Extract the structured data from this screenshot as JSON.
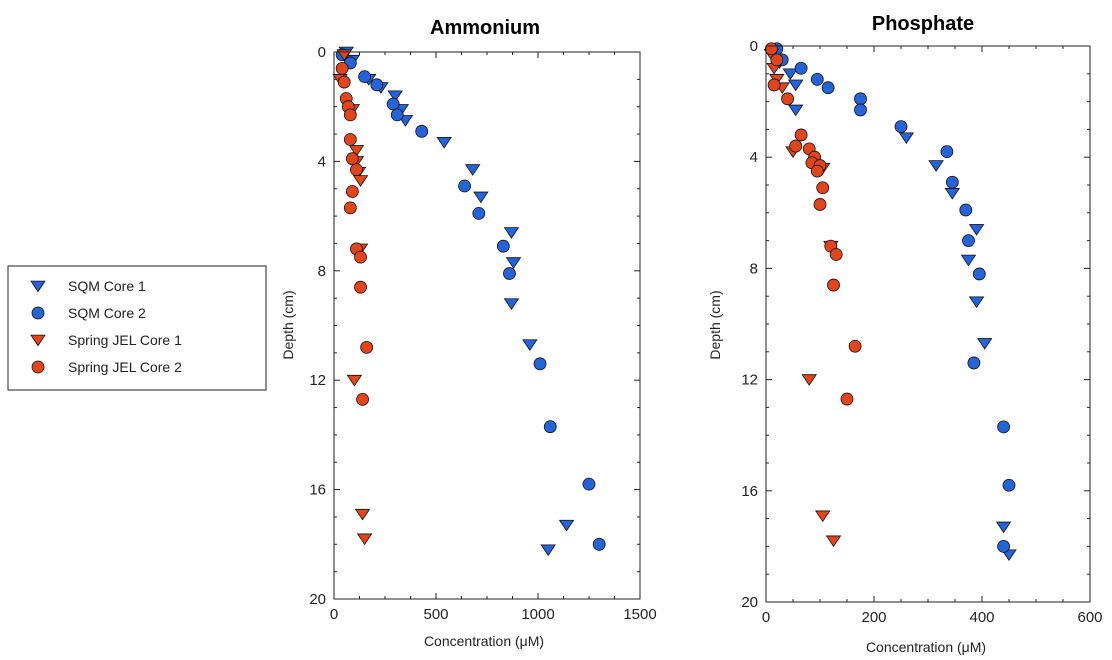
{
  "legend": {
    "entries": [
      {
        "label": "SQM Core 1",
        "marker": "triangle-down",
        "color": "#2563d9"
      },
      {
        "label": "SQM Core 2",
        "marker": "circle",
        "color": "#2563d9"
      },
      {
        "label": "Spring JEL Core 1",
        "marker": "triangle-down",
        "color": "#e2451c"
      },
      {
        "label": "Spring JEL Core 2",
        "marker": "circle",
        "color": "#e2451c"
      }
    ]
  },
  "chart_data": [
    {
      "type": "scatter",
      "title": "Ammonium",
      "xlabel": "Concentration (μM)",
      "ylabel": "Depth (cm)",
      "xlim": [
        0,
        1500
      ],
      "ylim": [
        0,
        20
      ],
      "y_inverted": true,
      "xticks": [
        0,
        500,
        1000,
        1500
      ],
      "yticks": [
        0,
        4,
        8,
        12,
        16,
        20
      ],
      "series": [
        {
          "name": "SQM Core 1",
          "marker": "triangle-down",
          "color": "#2563d9",
          "points": [
            [
              60,
              0.0
            ],
            [
              90,
              0.3
            ],
            [
              170,
              1.0
            ],
            [
              230,
              1.3
            ],
            [
              300,
              1.6
            ],
            [
              330,
              2.1
            ],
            [
              350,
              2.5
            ],
            [
              540,
              3.3
            ],
            [
              680,
              4.3
            ],
            [
              720,
              5.3
            ],
            [
              870,
              6.6
            ],
            [
              880,
              7.7
            ],
            [
              870,
              9.2
            ],
            [
              960,
              10.7
            ],
            [
              1050,
              18.2
            ],
            [
              1140,
              17.3
            ]
          ]
        },
        {
          "name": "SQM Core 2",
          "marker": "circle",
          "color": "#2563d9",
          "points": [
            [
              40,
              0.1
            ],
            [
              80,
              0.4
            ],
            [
              150,
              0.9
            ],
            [
              210,
              1.2
            ],
            [
              290,
              1.9
            ],
            [
              310,
              2.3
            ],
            [
              430,
              2.9
            ],
            [
              640,
              4.9
            ],
            [
              710,
              5.9
            ],
            [
              830,
              7.1
            ],
            [
              860,
              8.1
            ],
            [
              1010,
              11.4
            ],
            [
              1060,
              13.7
            ],
            [
              1250,
              15.8
            ],
            [
              1300,
              18.0
            ]
          ]
        },
        {
          "name": "Spring JEL Core 1",
          "marker": "triangle-down",
          "color": "#e2451c",
          "points": [
            [
              50,
              0.1
            ],
            [
              30,
              1.0
            ],
            [
              90,
              2.1
            ],
            [
              110,
              3.6
            ],
            [
              110,
              4.0
            ],
            [
              120,
              4.4
            ],
            [
              130,
              4.7
            ],
            [
              130,
              7.2
            ],
            [
              100,
              12.0
            ],
            [
              140,
              16.9
            ],
            [
              150,
              17.8
            ]
          ]
        },
        {
          "name": "Spring JEL Core 2",
          "marker": "circle",
          "color": "#e2451c",
          "points": [
            [
              40,
              0.6
            ],
            [
              50,
              1.1
            ],
            [
              60,
              1.7
            ],
            [
              70,
              2.0
            ],
            [
              80,
              2.3
            ],
            [
              80,
              3.2
            ],
            [
              90,
              3.9
            ],
            [
              110,
              4.3
            ],
            [
              90,
              5.1
            ],
            [
              80,
              5.7
            ],
            [
              110,
              7.2
            ],
            [
              130,
              7.5
            ],
            [
              130,
              8.6
            ],
            [
              160,
              10.8
            ],
            [
              140,
              12.7
            ]
          ]
        }
      ]
    },
    {
      "type": "scatter",
      "title": "Phosphate",
      "xlabel": "Concentration (μM)",
      "ylabel": "Depth (cm)",
      "xlim": [
        0,
        600
      ],
      "ylim": [
        0,
        20
      ],
      "y_inverted": true,
      "xticks": [
        0,
        200,
        400,
        600
      ],
      "yticks": [
        0,
        4,
        8,
        12,
        16,
        20
      ],
      "series": [
        {
          "name": "SQM Core 1",
          "marker": "triangle-down",
          "color": "#2563d9",
          "points": [
            [
              15,
              0.2
            ],
            [
              25,
              0.6
            ],
            [
              45,
              1.0
            ],
            [
              55,
              1.4
            ],
            [
              55,
              2.3
            ],
            [
              260,
              3.3
            ],
            [
              315,
              4.3
            ],
            [
              345,
              5.3
            ],
            [
              390,
              6.6
            ],
            [
              375,
              7.7
            ],
            [
              390,
              9.2
            ],
            [
              405,
              10.7
            ],
            [
              440,
              17.3
            ],
            [
              450,
              18.3
            ]
          ]
        },
        {
          "name": "SQM Core 2",
          "marker": "circle",
          "color": "#2563d9",
          "points": [
            [
              20,
              0.1
            ],
            [
              30,
              0.5
            ],
            [
              65,
              0.8
            ],
            [
              95,
              1.2
            ],
            [
              115,
              1.5
            ],
            [
              175,
              1.9
            ],
            [
              175,
              2.3
            ],
            [
              250,
              2.9
            ],
            [
              335,
              3.8
            ],
            [
              345,
              4.9
            ],
            [
              370,
              5.9
            ],
            [
              375,
              7.0
            ],
            [
              395,
              8.2
            ],
            [
              385,
              11.4
            ],
            [
              440,
              13.7
            ],
            [
              450,
              15.8
            ],
            [
              440,
              18.0
            ]
          ]
        },
        {
          "name": "Spring JEL Core 1",
          "marker": "triangle-down",
          "color": "#e2451c",
          "points": [
            [
              10,
              0.3
            ],
            [
              15,
              0.8
            ],
            [
              20,
              1.2
            ],
            [
              30,
              1.5
            ],
            [
              50,
              3.8
            ],
            [
              105,
              4.4
            ],
            [
              80,
              12.0
            ],
            [
              120,
              7.2
            ],
            [
              105,
              16.9
            ],
            [
              125,
              17.8
            ]
          ]
        },
        {
          "name": "Spring JEL Core 2",
          "marker": "circle",
          "color": "#e2451c",
          "points": [
            [
              10,
              0.1
            ],
            [
              20,
              0.5
            ],
            [
              15,
              1.4
            ],
            [
              40,
              1.9
            ],
            [
              65,
              3.2
            ],
            [
              55,
              3.6
            ],
            [
              80,
              3.7
            ],
            [
              90,
              4.0
            ],
            [
              85,
              4.2
            ],
            [
              100,
              4.3
            ],
            [
              95,
              4.5
            ],
            [
              105,
              5.1
            ],
            [
              100,
              5.7
            ],
            [
              120,
              7.2
            ],
            [
              130,
              7.5
            ],
            [
              125,
              8.6
            ],
            [
              165,
              10.8
            ],
            [
              150,
              12.7
            ]
          ]
        }
      ]
    }
  ]
}
